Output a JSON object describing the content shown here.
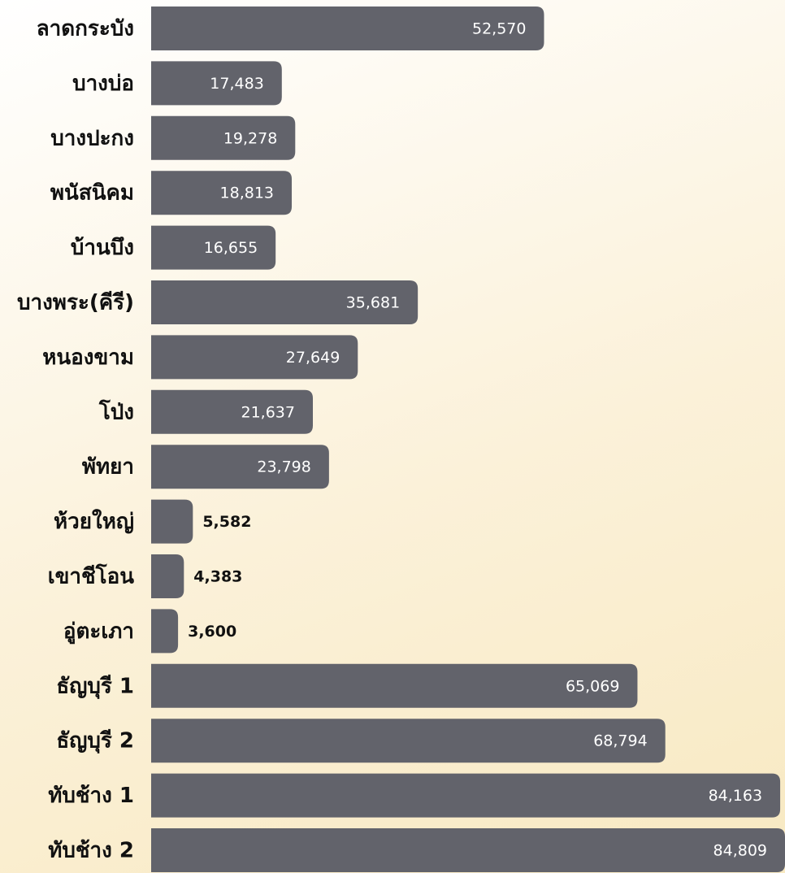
{
  "chart_data": {
    "type": "barh",
    "categories": [
      "ลาดกระบัง",
      "บางบ่อ",
      "บางปะกง",
      "พนัสนิคม",
      "บ้านบึง",
      "บางพระ(คีรี)",
      "หนองขาม",
      "โป่ง",
      "พัทยา",
      "ห้วยใหญ่",
      "เขาชีโอน",
      "อู่ตะเภา",
      "ธัญบุรี 1",
      "ธัญบุรี 2",
      "ทับช้าง 1",
      "ทับช้าง 2"
    ],
    "values": [
      52570,
      17483,
      19278,
      18813,
      16655,
      35681,
      27649,
      21637,
      23798,
      5582,
      4383,
      3600,
      65069,
      68794,
      84163,
      84809
    ],
    "value_labels": [
      "52,570",
      "17,483",
      "19,278",
      "18,813",
      "16,655",
      "35,681",
      "27,649",
      "21,637",
      "23,798",
      "5,582",
      "4,383",
      "3,600",
      "65,069",
      "68,794",
      "84,163",
      "84,809"
    ],
    "color": "#62636b"
  }
}
